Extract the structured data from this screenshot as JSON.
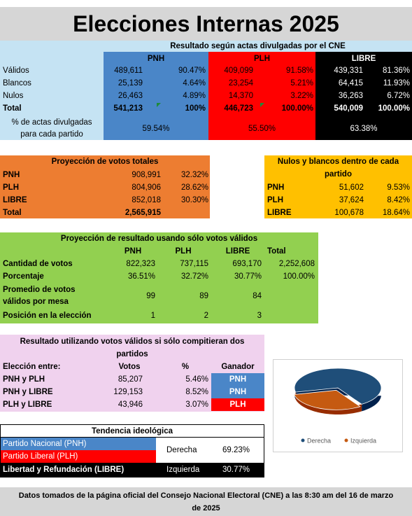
{
  "title": "Elecciones Internas 2025",
  "cne": {
    "header": "Resultado según actas divulgadas por el CNE",
    "parties": [
      "PNH",
      "PLH",
      "LIBRE"
    ],
    "rows": [
      {
        "label": "Válidos",
        "pnh": [
          "489,611",
          "90.47%"
        ],
        "plh": [
          "409,099",
          "91.58%"
        ],
        "libre": [
          "439,331",
          "81.36%"
        ]
      },
      {
        "label": "Blancos",
        "pnh": [
          "25,139",
          "4.64%"
        ],
        "plh": [
          "23,254",
          "5.21%"
        ],
        "libre": [
          "64,415",
          "11.93%"
        ]
      },
      {
        "label": "Nulos",
        "pnh": [
          "26,463",
          "4.89%"
        ],
        "plh": [
          "14,370",
          "3.22%"
        ],
        "libre": [
          "36,263",
          "6.72%"
        ]
      },
      {
        "label": "Total",
        "pnh": [
          "541,213",
          "100%"
        ],
        "plh": [
          "446,723",
          "100.00%"
        ],
        "libre": [
          "540,009",
          "100.00%"
        ]
      }
    ],
    "actas_label_1": "% de actas divulgadas",
    "actas_label_2": "para cada partido",
    "actas": [
      "59.54%",
      "55.50%",
      "63.38%"
    ]
  },
  "projection": {
    "header": "Proyección de votos totales",
    "rows": [
      {
        "label": "PNH",
        "votes": "908,991",
        "pct": "32.32%"
      },
      {
        "label": "PLH",
        "votes": "804,906",
        "pct": "28.62%"
      },
      {
        "label": "LIBRE",
        "votes": "852,018",
        "pct": "30.30%"
      },
      {
        "label": "Total",
        "votes": "2,565,915",
        "pct": ""
      }
    ]
  },
  "nulos_blancos": {
    "header_1": "Nulos y blancos dentro de cada",
    "header_2": "partido",
    "rows": [
      {
        "label": "PNH",
        "votes": "51,602",
        "pct": "9.53%"
      },
      {
        "label": "PLH",
        "votes": "37,624",
        "pct": "8.42%"
      },
      {
        "label": "LIBRE",
        "votes": "100,678",
        "pct": "18.64%"
      }
    ]
  },
  "validos": {
    "header": "Proyección de resultado usando sólo votos válidos",
    "cols": [
      "PNH",
      "PLH",
      "LIBRE",
      "Total"
    ],
    "row_cantidad": {
      "label": "Cantidad de votos",
      "values": [
        "822,323",
        "737,115",
        "693,170",
        "2,252,608"
      ]
    },
    "row_porcentaje": {
      "label": "Porcentaje",
      "values": [
        "36.51%",
        "32.72%",
        "30.77%",
        "100.00%"
      ]
    },
    "row_promedio": {
      "label_1": "Promedio de votos",
      "label_2": "válidos por mesa",
      "values": [
        "99",
        "89",
        "84"
      ]
    },
    "row_posicion": {
      "label": "Posición en la elección",
      "values": [
        "1",
        "2",
        "3"
      ]
    }
  },
  "duel": {
    "header_1": "Resultado utilizando votos válidos si sólo compitieran dos",
    "header_2": "partidos",
    "col_label": "Elección entre:",
    "col_votos": "Votos",
    "col_pct": "%",
    "col_ganador": "Ganador",
    "rows": [
      {
        "label": "PNH y PLH",
        "votes": "85,207",
        "pct": "5.46%",
        "winner": "PNH",
        "winner_color": "#4a86c8"
      },
      {
        "label": "PNH y LIBRE",
        "votes": "129,153",
        "pct": "8.52%",
        "winner": "PNH",
        "winner_color": "#4a86c8"
      },
      {
        "label": "PLH y LIBRE",
        "votes": "43,946",
        "pct": "3.07%",
        "winner": "PLH",
        "winner_color": "#ff0000"
      }
    ]
  },
  "tendencia": {
    "header": "Tendencia ideológica",
    "pnh": "Partido Nacional (PNH)",
    "plh": "Partido Liberal (PLH)",
    "libre": "Libertad y Refundación (LIBRE)",
    "derecha": "Derecha",
    "derecha_pct": "69.23%",
    "izquierda": "Izquierda",
    "izquierda_pct": "30.77%"
  },
  "chart_data": {
    "type": "pie",
    "categories": [
      "Derecha",
      "Izquierda"
    ],
    "values": [
      69.23,
      30.77
    ],
    "colors": [
      "#1f4e79",
      "#c55a11"
    ],
    "legend": "bottom"
  },
  "footer_1": "Datos tomados de la página oficial del Consejo Nacional Electoral (CNE) a las 8:30 am del 16 de marzo",
  "footer_2": "de 2025",
  "colors": {
    "pnh": "#4a86c8",
    "plh": "#ff0000",
    "libre": "#000000",
    "cne_bg": "#c5e3f3",
    "projection": "#ed7d31",
    "nulos": "#ffc000",
    "validos": "#92d050",
    "duel": "#f0d2ee"
  }
}
